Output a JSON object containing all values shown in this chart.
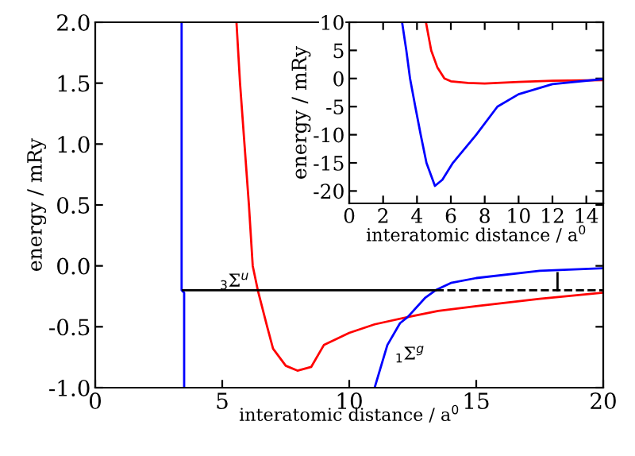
{
  "chart_data": [
    {
      "type": "line",
      "xlabel": "interatomic distance / a$^{0}$",
      "ylabel": "energy / mRy",
      "xlim": [
        0,
        20
      ],
      "ylim": [
        -1.0,
        2.0
      ],
      "xticks": [
        0,
        5,
        10,
        15,
        20
      ],
      "yticks": [
        {
          "value": -1.0,
          "label": "-1.0"
        },
        {
          "value": -0.5,
          "label": "-0.5"
        },
        {
          "value": 0.0,
          "label": "0.0"
        },
        {
          "value": 0.5,
          "label": "0.5"
        },
        {
          "value": 1.0,
          "label": "1.0"
        },
        {
          "value": 1.5,
          "label": "1.5"
        },
        {
          "value": 2.0,
          "label": "2.0"
        }
      ],
      "grid": false,
      "legend": false,
      "marker": "none",
      "series": [
        {
          "color": "#ff0000",
          "line_style": "solid",
          "x": [
            5.56,
            5.7,
            5.875,
            6.05,
            6.2,
            6.4,
            6.77,
            7.0,
            7.5,
            7.96,
            8.5,
            9.0,
            10.0,
            11.0,
            12.3,
            13.5,
            15.0,
            17.5,
            20.0
          ],
          "values": [
            2.0,
            1.5,
            1.0,
            0.5,
            0.0,
            -0.2,
            -0.5,
            -0.68,
            -0.82,
            -0.86,
            -0.83,
            -0.65,
            -0.55,
            -0.48,
            -0.42,
            -0.37,
            -0.33,
            -0.27,
            -0.22
          ]
        },
        {
          "color": "#0000ff",
          "line_style": "solid",
          "x": [
            3.4,
            3.4,
            3.5,
            3.5,
            7.0,
            11.0,
            11.5,
            12.0,
            12.3,
            13.0,
            13.4,
            14.0,
            15.0,
            17.5,
            20.0
          ],
          "values": [
            2.0,
            -0.2,
            -0.22,
            -1.0,
            null,
            -1.0,
            -0.65,
            -0.47,
            -0.42,
            -0.26,
            -0.2,
            -0.14,
            -0.1,
            -0.04,
            -0.02
          ]
        },
        {
          "color": "#000000",
          "line_style": "solid",
          "x": [
            3.45,
            13.4
          ],
          "values": [
            -0.2,
            -0.2
          ]
        },
        {
          "color": "#000000",
          "line_style": "dashed",
          "x": [
            13.4,
            20.0
          ],
          "values": [
            -0.2,
            -0.2
          ]
        },
        {
          "color": "#000000",
          "line_style": "solid",
          "x": [
            18.2,
            18.2
          ],
          "values": [
            -0.2,
            -0.06
          ]
        }
      ],
      "annotations": [
        "$_{3}$Σ$^{u}$",
        "$_{1}$Σ$^{g}$"
      ]
    },
    {
      "type": "line",
      "xlabel": "interatomic distance / a$^{0}$",
      "ylabel": "energy / mRy",
      "xlim": [
        0,
        15
      ],
      "ylim": [
        -22.2,
        10
      ],
      "xticks": [
        0,
        2,
        4,
        6,
        8,
        10,
        12,
        14
      ],
      "yticks": [
        {
          "value": -20,
          "label": "-20"
        },
        {
          "value": -15,
          "label": "-15"
        },
        {
          "value": -10,
          "label": "-10"
        },
        {
          "value": -5,
          "label": "-5"
        },
        0,
        5,
        10
      ],
      "grid": false,
      "legend": false,
      "marker": "none",
      "series": [
        {
          "color": "#ff0000",
          "line_style": "solid",
          "x": [
            4.53,
            4.84,
            5.2,
            5.62,
            6.0,
            7.0,
            8.0,
            10.0,
            12.0,
            15.0
          ],
          "values": [
            10,
            5,
            2,
            0,
            -0.5,
            -0.8,
            -0.9,
            -0.6,
            -0.4,
            -0.3
          ]
        },
        {
          "color": "#0000ff",
          "line_style": "solid",
          "x": [
            3.12,
            3.37,
            3.59,
            3.9,
            4.22,
            4.56,
            5.06,
            5.5,
            6.12,
            7.5,
            8.75,
            10.0,
            12.0,
            15.0
          ],
          "values": [
            10,
            5,
            0,
            -5,
            -10,
            -15,
            -19.1,
            -18,
            -15,
            -10,
            -5,
            -2.8,
            -1.0,
            -0.1
          ]
        }
      ]
    }
  ]
}
